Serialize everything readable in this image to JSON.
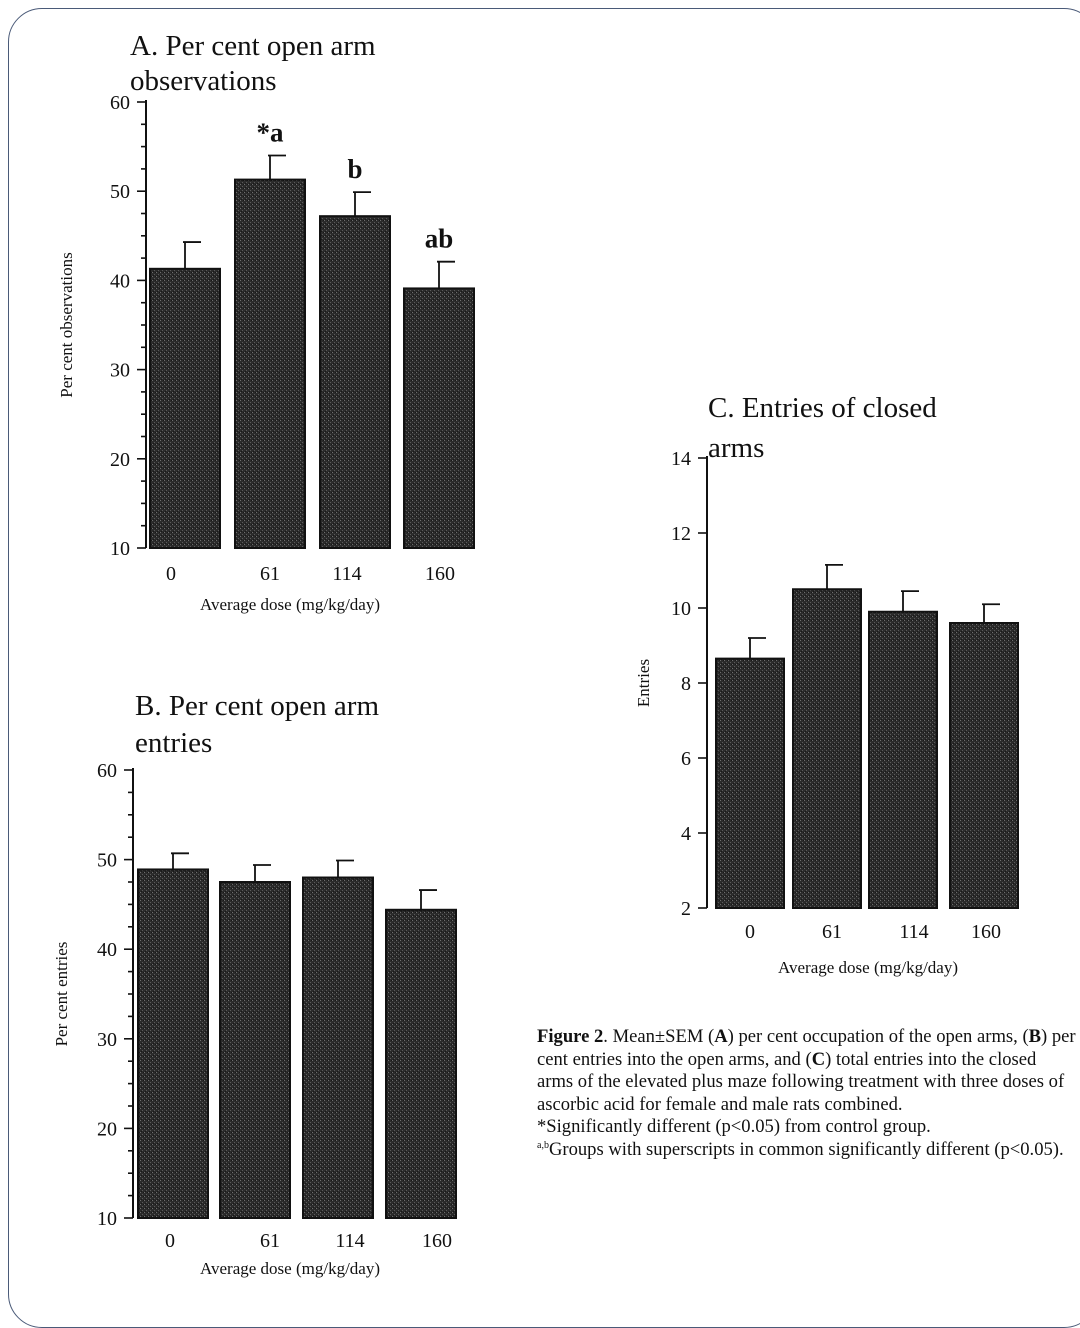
{
  "caption": {
    "lead": "Figure 2",
    "seg1": ". Mean±SEM (",
    "A": "A",
    "seg2": ") per cent occupation of the open arms, (",
    "B": "B",
    "seg3": ") per cent entries into the open arms, and (",
    "C": "C",
    "seg4": ") total entries into the closed arms of the elevated plus maze following treatment with three doses of ascorbic acid for female and male rats combined.",
    "note1": "*Significantly different (p<0.05) from control group.",
    "note2_sup": "a,b",
    "note2": "Groups with superscripts in common significantly different (p<0.05)."
  },
  "chart_data": [
    {
      "panel": "A",
      "type": "bar",
      "title": [
        "A. Per cent open  arm",
        "observations"
      ],
      "xlabel": "Average dose (mg/kg/day)",
      "ylabel": "Per cent observations",
      "categories": [
        "0",
        "61",
        "114",
        "160"
      ],
      "values": [
        41.3,
        51.3,
        47.2,
        39.1
      ],
      "errors": [
        3.0,
        2.7,
        2.7,
        3.0
      ],
      "annotations": [
        "",
        "*a",
        "b",
        "ab"
      ],
      "ylim": [
        10,
        60
      ],
      "yticks": [
        10,
        20,
        30,
        40,
        50,
        60
      ]
    },
    {
      "panel": "B",
      "type": "bar",
      "title": [
        "B. Per cent open  arm",
        "entries"
      ],
      "xlabel": "Average dose (mg/kg/day)",
      "ylabel": "Per cent entries",
      "categories": [
        "0",
        "61",
        "114",
        "160"
      ],
      "values": [
        48.9,
        47.5,
        48.0,
        44.4
      ],
      "errors": [
        1.8,
        1.9,
        1.9,
        2.2
      ],
      "annotations": [
        "",
        "",
        "",
        ""
      ],
      "ylim": [
        10,
        60
      ],
      "yticks": [
        10,
        20,
        30,
        40,
        50,
        60
      ]
    },
    {
      "panel": "C",
      "type": "bar",
      "title": [
        "C. Entries of closed",
        "arms"
      ],
      "xlabel": "Average dose (mg/kg/day)",
      "ylabel": "Entries",
      "categories": [
        "0",
        "61",
        "114",
        "160"
      ],
      "values": [
        8.65,
        10.5,
        9.9,
        9.6
      ],
      "errors": [
        0.55,
        0.65,
        0.55,
        0.5
      ],
      "annotations": [
        "",
        "",
        "",
        ""
      ],
      "ylim": [
        2,
        14
      ],
      "yticks": [
        2,
        4,
        6,
        8,
        10,
        12,
        14
      ]
    }
  ]
}
